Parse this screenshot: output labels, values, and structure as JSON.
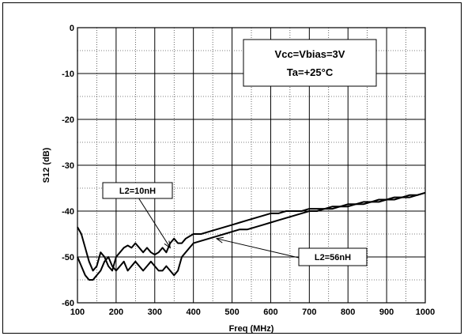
{
  "chart_data": {
    "type": "line",
    "title": "",
    "xlabel": "Freq (MHz)",
    "ylabel": "S12 (dB)",
    "xlim": [
      100,
      1000
    ],
    "ylim": [
      -60,
      0
    ],
    "x_ticks": [
      "100",
      "200",
      "300",
      "400",
      "500",
      "600",
      "700",
      "800",
      "900",
      "1000"
    ],
    "y_ticks": [
      "0",
      "-10",
      "-20",
      "-30",
      "-40",
      "-50",
      "-60"
    ],
    "grid": "major solid, minor dotted",
    "legend_box": [
      "Vcc=Vbias=3V",
      "Ta=+25°C"
    ],
    "annotations": [
      {
        "label": "L2=10nH",
        "points_to": [
          340,
          -48
        ]
      },
      {
        "label": "L2=56nH",
        "points_to": [
          460,
          -46
        ]
      }
    ],
    "series": [
      {
        "name": "L2=10nH",
        "x": [
          100,
          110,
          120,
          130,
          140,
          150,
          160,
          170,
          180,
          190,
          200,
          210,
          220,
          230,
          240,
          250,
          260,
          270,
          280,
          290,
          300,
          310,
          320,
          330,
          340,
          350,
          360,
          370,
          380,
          390,
          400,
          420,
          440,
          460,
          480,
          500,
          520,
          540,
          560,
          580,
          600,
          620,
          640,
          660,
          680,
          700,
          720,
          740,
          760,
          780,
          800,
          820,
          840,
          860,
          880,
          900,
          920,
          940,
          960,
          980,
          1000
        ],
        "y": [
          -43.5,
          -45,
          -48,
          -51,
          -53,
          -52,
          -49,
          -50,
          -52,
          -53,
          -50,
          -49,
          -48,
          -47.5,
          -48,
          -47,
          -48,
          -49,
          -48,
          -49,
          -49.5,
          -49,
          -48,
          -49,
          -47,
          -46,
          -47,
          -47,
          -46,
          -45.5,
          -45,
          -45,
          -44.5,
          -44,
          -43.5,
          -43,
          -42.5,
          -42,
          -41.5,
          -41,
          -40.5,
          -40.5,
          -40,
          -40,
          -40,
          -39.5,
          -39.5,
          -39.5,
          -39,
          -39,
          -38.5,
          -38.5,
          -38,
          -38,
          -37.5,
          -37.5,
          -37,
          -37,
          -36.5,
          -36.5,
          -36
        ]
      },
      {
        "name": "L2=56nH",
        "x": [
          100,
          110,
          120,
          130,
          140,
          150,
          160,
          170,
          180,
          190,
          200,
          210,
          220,
          230,
          240,
          250,
          260,
          270,
          280,
          290,
          300,
          310,
          320,
          330,
          340,
          350,
          360,
          370,
          380,
          390,
          400,
          420,
          440,
          460,
          480,
          500,
          520,
          540,
          560,
          580,
          600,
          620,
          640,
          660,
          680,
          700,
          720,
          740,
          760,
          780,
          800,
          820,
          840,
          860,
          880,
          900,
          920,
          940,
          960,
          980,
          1000
        ],
        "y": [
          -50,
          -52,
          -54,
          -55,
          -55,
          -54,
          -53,
          -51,
          -50,
          -52,
          -53,
          -52,
          -51,
          -53,
          -52,
          -51,
          -52,
          -53,
          -52,
          -51,
          -52,
          -53,
          -53,
          -52,
          -53,
          -54,
          -53,
          -50,
          -49,
          -48,
          -47,
          -46.5,
          -46,
          -45.5,
          -45,
          -44.5,
          -44,
          -44,
          -43.5,
          -43,
          -42.5,
          -42,
          -41.5,
          -41,
          -40.5,
          -40,
          -40,
          -39.5,
          -39.5,
          -39,
          -39,
          -38.5,
          -38.5,
          -38,
          -38,
          -37.5,
          -37.5,
          -37,
          -37,
          -36.5,
          -36
        ]
      }
    ]
  }
}
